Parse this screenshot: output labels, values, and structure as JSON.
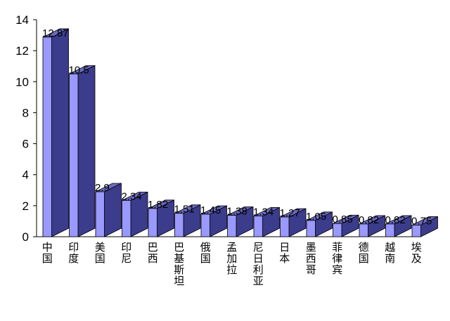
{
  "chart_data": {
    "type": "bar",
    "style": "3d-column",
    "categories": [
      "中国",
      "印度",
      "美国",
      "印尼",
      "巴西",
      "巴基斯坦",
      "俄国",
      "孟加拉",
      "尼日利亚",
      "日本",
      "墨西哥",
      "菲律宾",
      "德国",
      "越南",
      "埃及"
    ],
    "values": [
      12.87,
      10.5,
      2.9,
      2.34,
      1.82,
      1.51,
      1.45,
      1.38,
      1.34,
      1.27,
      1.05,
      0.85,
      0.82,
      0.82,
      0.75
    ],
    "value_labels": [
      "12.87",
      "10.5",
      "2.9",
      "2.34",
      "1.82",
      "1.51",
      "1.45",
      "1.38",
      "1.34",
      "1.27",
      "1.05",
      "0.85",
      "0.82",
      "0.82",
      "0.75"
    ],
    "ylim": [
      0,
      14
    ],
    "yticks": [
      "0",
      "2",
      "4",
      "6",
      "8",
      "10",
      "12",
      "14"
    ],
    "grid": false,
    "legend": "none",
    "colors": {
      "front": "#9999ff",
      "side": "#3c3c8c",
      "top": "#6b6bc0",
      "edge": "#000000"
    }
  }
}
